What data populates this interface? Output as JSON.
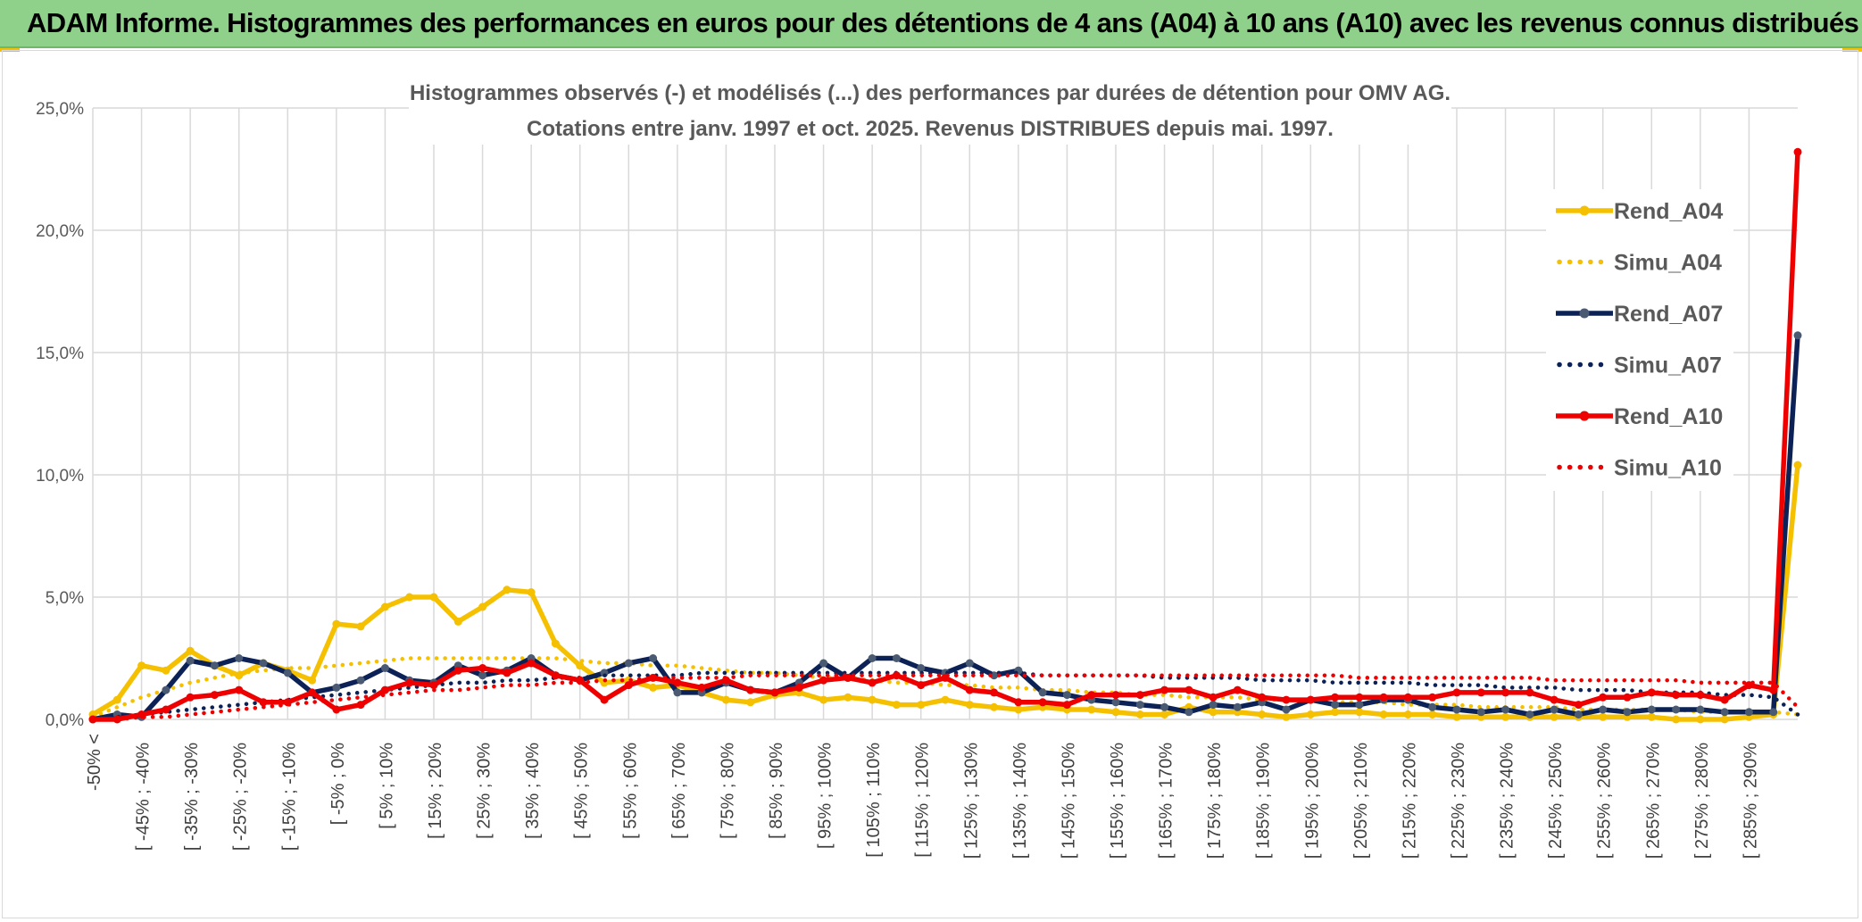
{
  "header": {
    "title": "ADAM Informe. Histogrammes des performances en euros pour des détentions de 4 ans (A04) à 10 ans (A10) avec les revenus connus distribués"
  },
  "colors": {
    "header_bg": "#8fd18a",
    "a04": "#f5c000",
    "a07": "#0c2257",
    "a10": "#ee0000",
    "grid": "#d9d9d9"
  },
  "chart_data": {
    "type": "line",
    "title_lines": [
      "Histogrammes observés (-) et modélisés (...) des performances par durées de détention pour OMV AG.",
      "Cotations entre janv. 1997 et oct. 2025. Revenus DISTRIBUES depuis mai. 1997."
    ],
    "y_ticks": [
      "0,0%",
      "5,0%",
      "10,0%",
      "15,0%",
      "20,0%",
      "25,0%"
    ],
    "ylim": [
      0,
      25
    ],
    "grid": true,
    "legend_position": "right",
    "x_tick_labels": [
      "-50% <",
      "[ -45% ; -40%",
      "[ -35% ; -30%",
      "[ -25% ; -20%",
      "[ -15% ; -10%",
      "[ -5% ; 0%",
      "[ 5% ; 10%",
      "[ 15% ; 20%",
      "[ 25% ; 30%",
      "[ 35% ; 40%",
      "[ 45% ; 50%",
      "[ 55% ; 60%",
      "[ 65% ; 70%",
      "[ 75% ; 80%",
      "[ 85% ; 90%",
      "[ 95% ; 100%",
      "[ 105% ; 110%",
      "[ 115% ; 120%",
      "[ 125% ; 130%",
      "[ 135% ; 140%",
      "[ 145% ; 150%",
      "[ 155% ; 160%",
      "[ 165% ; 170%",
      "[ 175% ; 180%",
      "[ 185% ; 190%",
      "[ 195% ; 200%",
      "[ 205% ; 210%",
      "[ 215% ; 220%",
      "[ 225% ; 230%",
      "[ 235% ; 240%",
      "[ 245% ; 250%",
      "[ 255% ; 260%",
      "[ 265% ; 270%",
      "[ 275% ; 280%",
      "[ 285% ; 290%"
    ],
    "series": [
      {
        "name": "Rend_A04",
        "style": "solid",
        "color": "#f5c000",
        "values": [
          0.2,
          0.8,
          2.2,
          2.0,
          2.8,
          2.2,
          1.8,
          2.3,
          2.0,
          1.6,
          3.9,
          3.8,
          4.6,
          5.0,
          5.0,
          4.0,
          4.6,
          5.3,
          5.2,
          3.1,
          2.2,
          1.5,
          1.6,
          1.3,
          1.4,
          1.1,
          0.8,
          0.7,
          1.0,
          1.1,
          0.8,
          0.9,
          0.8,
          0.6,
          0.6,
          0.8,
          0.6,
          0.5,
          0.4,
          0.5,
          0.4,
          0.4,
          0.3,
          0.2,
          0.2,
          0.5,
          0.3,
          0.3,
          0.2,
          0.1,
          0.2,
          0.3,
          0.3,
          0.2,
          0.2,
          0.2,
          0.1,
          0.1,
          0.1,
          0.1,
          0.1,
          0.1,
          0.1,
          0.1,
          0.1,
          0.0,
          0.0,
          0.0,
          0.1,
          0.2,
          10.4
        ]
      },
      {
        "name": "Simu_A04",
        "style": "dotted",
        "color": "#f5c000",
        "values": [
          0.1,
          0.5,
          0.9,
          1.2,
          1.5,
          1.7,
          1.9,
          2.0,
          2.1,
          2.1,
          2.2,
          2.3,
          2.4,
          2.5,
          2.5,
          2.5,
          2.5,
          2.5,
          2.5,
          2.5,
          2.4,
          2.3,
          2.3,
          2.2,
          2.2,
          2.1,
          2.0,
          1.9,
          1.9,
          1.8,
          1.7,
          1.7,
          1.6,
          1.5,
          1.5,
          1.4,
          1.4,
          1.3,
          1.3,
          1.2,
          1.2,
          1.1,
          1.1,
          1.0,
          1.0,
          0.9,
          0.9,
          0.9,
          0.8,
          0.8,
          0.8,
          0.7,
          0.7,
          0.7,
          0.6,
          0.6,
          0.6,
          0.5,
          0.5,
          0.5,
          0.5,
          0.4,
          0.4,
          0.4,
          0.4,
          0.4,
          0.3,
          0.3,
          0.3,
          0.3,
          0.2
        ]
      },
      {
        "name": "Rend_A07",
        "style": "solid",
        "color": "#0c2257",
        "values": [
          0.0,
          0.2,
          0.1,
          1.2,
          2.4,
          2.2,
          2.5,
          2.3,
          1.9,
          1.1,
          1.3,
          1.6,
          2.1,
          1.6,
          1.5,
          2.2,
          1.8,
          2.0,
          2.5,
          1.8,
          1.6,
          1.9,
          2.3,
          2.5,
          1.1,
          1.1,
          1.5,
          1.2,
          1.1,
          1.5,
          2.3,
          1.7,
          2.5,
          2.5,
          2.1,
          1.9,
          2.3,
          1.8,
          2.0,
          1.1,
          1.0,
          0.8,
          0.7,
          0.6,
          0.5,
          0.3,
          0.6,
          0.5,
          0.7,
          0.4,
          0.8,
          0.6,
          0.6,
          0.8,
          0.8,
          0.5,
          0.4,
          0.3,
          0.4,
          0.2,
          0.4,
          0.2,
          0.4,
          0.3,
          0.4,
          0.4,
          0.4,
          0.3,
          0.3,
          0.3,
          15.7
        ]
      },
      {
        "name": "Simu_A07",
        "style": "dotted",
        "color": "#0c2257",
        "values": [
          0.0,
          0.1,
          0.2,
          0.3,
          0.4,
          0.5,
          0.6,
          0.7,
          0.8,
          0.9,
          1.0,
          1.1,
          1.2,
          1.3,
          1.4,
          1.5,
          1.5,
          1.6,
          1.6,
          1.7,
          1.7,
          1.8,
          1.8,
          1.8,
          1.8,
          1.9,
          1.9,
          1.9,
          1.9,
          1.9,
          1.9,
          1.9,
          1.9,
          1.9,
          1.9,
          1.9,
          1.9,
          1.9,
          1.9,
          1.8,
          1.8,
          1.8,
          1.8,
          1.8,
          1.7,
          1.7,
          1.7,
          1.7,
          1.6,
          1.6,
          1.6,
          1.5,
          1.5,
          1.5,
          1.5,
          1.4,
          1.4,
          1.4,
          1.3,
          1.3,
          1.3,
          1.2,
          1.2,
          1.2,
          1.1,
          1.1,
          1.1,
          1.0,
          1.0,
          0.9,
          0.2
        ]
      },
      {
        "name": "Rend_A10",
        "style": "solid",
        "color": "#ee0000",
        "values": [
          0.0,
          0.0,
          0.2,
          0.4,
          0.9,
          1.0,
          1.2,
          0.7,
          0.7,
          1.1,
          0.4,
          0.6,
          1.2,
          1.5,
          1.4,
          2.0,
          2.1,
          1.9,
          2.3,
          1.8,
          1.6,
          0.8,
          1.4,
          1.7,
          1.5,
          1.3,
          1.6,
          1.2,
          1.1,
          1.3,
          1.6,
          1.7,
          1.5,
          1.8,
          1.4,
          1.7,
          1.2,
          1.1,
          0.7,
          0.7,
          0.6,
          1.0,
          1.0,
          1.0,
          1.2,
          1.2,
          0.9,
          1.2,
          0.9,
          0.8,
          0.8,
          0.9,
          0.9,
          0.9,
          0.9,
          0.9,
          1.1,
          1.1,
          1.1,
          1.1,
          0.8,
          0.6,
          0.9,
          0.9,
          1.1,
          1.0,
          1.0,
          0.8,
          1.4,
          1.2,
          23.2
        ]
      },
      {
        "name": "Simu_A10",
        "style": "dotted",
        "color": "#ee0000",
        "values": [
          0.0,
          0.0,
          0.1,
          0.1,
          0.2,
          0.3,
          0.4,
          0.5,
          0.6,
          0.7,
          0.8,
          0.9,
          1.0,
          1.1,
          1.2,
          1.2,
          1.3,
          1.4,
          1.4,
          1.5,
          1.5,
          1.6,
          1.6,
          1.7,
          1.7,
          1.7,
          1.7,
          1.8,
          1.8,
          1.8,
          1.8,
          1.8,
          1.8,
          1.8,
          1.8,
          1.8,
          1.8,
          1.8,
          1.8,
          1.8,
          1.8,
          1.8,
          1.8,
          1.8,
          1.8,
          1.8,
          1.8,
          1.8,
          1.8,
          1.8,
          1.8,
          1.8,
          1.7,
          1.7,
          1.7,
          1.7,
          1.7,
          1.7,
          1.7,
          1.7,
          1.6,
          1.6,
          1.6,
          1.6,
          1.6,
          1.6,
          1.5,
          1.5,
          1.5,
          1.5,
          0.5
        ]
      }
    ]
  }
}
